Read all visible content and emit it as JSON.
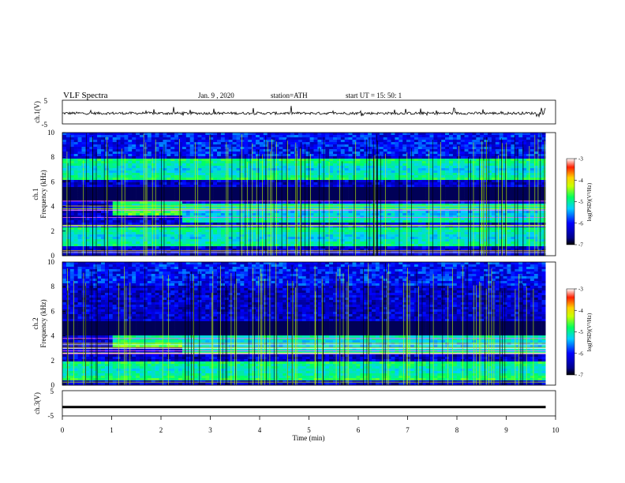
{
  "header": {
    "title": "VLF  Spectra",
    "date": "Jan.  9  , 2020",
    "station": "station=ATH",
    "start": "start  UT  =    15: 50: 1"
  },
  "chart_data": [
    {
      "type": "line",
      "ylabel": "ch.1(V)",
      "ylim": [
        -5,
        5
      ],
      "yticks": [
        "5",
        "-5"
      ],
      "xlim": [
        0,
        10
      ],
      "description_values": "noisy waveform near -0.5 V with spikes",
      "series": [
        {
          "y_mean": -0.5,
          "spike_max": 2.5
        }
      ],
      "color": "#000000"
    },
    {
      "type": "heatmap",
      "ylabel": "ch.1\nFrequency  (kHz)",
      "ylim": [
        0,
        10
      ],
      "yticks": [
        "0",
        "2",
        "4",
        "6",
        "8",
        "10"
      ],
      "xlim": [
        0,
        10
      ],
      "colorbar": {
        "label": "log(PSD)(V²/Hz)",
        "ticks": [
          "-3",
          "-4",
          "-5",
          "-6",
          "-7"
        ],
        "range": [
          -7,
          -3
        ]
      },
      "bands": [
        {
          "f_khz": 4.0,
          "t_start": 1.0,
          "t_end": 2.4,
          "level": -5.0
        },
        {
          "f_khz": 3.5,
          "t_start": 2.4,
          "t_end": 9.8,
          "level": -5.4
        },
        {
          "f_khz": 1.5,
          "t_start": 0,
          "t_end": 9.8,
          "level": -5.3
        },
        {
          "f_khz": 5.0,
          "t_start": 0,
          "t_end": 9.8,
          "level": -6.8
        },
        {
          "f_khz": 7.0,
          "t_start": 0,
          "t_end": 9.8,
          "level": -5.3
        }
      ]
    },
    {
      "type": "heatmap",
      "ylabel": "ch.2\nFrequency  (kHz)",
      "ylim": [
        0,
        10
      ],
      "yticks": [
        "0",
        "2",
        "4",
        "6",
        "8",
        "10"
      ],
      "xlim": [
        0,
        10
      ],
      "colorbar": {
        "label": "log(PSD)(V²/Hz)",
        "ticks": [
          "-3",
          "-4",
          "-5",
          "-6",
          "-7"
        ],
        "range": [
          -7,
          -3
        ]
      },
      "bands": [
        {
          "f_khz": 3.8,
          "t_start": 1.0,
          "t_end": 2.4,
          "level": -5.0
        },
        {
          "f_khz": 3.3,
          "t_start": 2.4,
          "t_end": 9.8,
          "level": -5.4
        },
        {
          "f_khz": 1.2,
          "t_start": 0,
          "t_end": 9.8,
          "level": -5.2
        },
        {
          "f_khz": 4.6,
          "t_start": 0,
          "t_end": 9.8,
          "level": -6.8
        }
      ]
    },
    {
      "type": "line",
      "ylabel": "ch.3(V)",
      "ylim": [
        -5,
        5
      ],
      "yticks": [
        "5",
        "-5"
      ],
      "xlim": [
        0,
        10
      ],
      "series": [
        {
          "y_mean": -1.5
        }
      ],
      "xlabel": "Time  (min)",
      "xticks": [
        "0",
        "1",
        "2",
        "3",
        "4",
        "5",
        "6",
        "7",
        "8",
        "9",
        "10"
      ],
      "data_end_min": 9.8
    }
  ]
}
